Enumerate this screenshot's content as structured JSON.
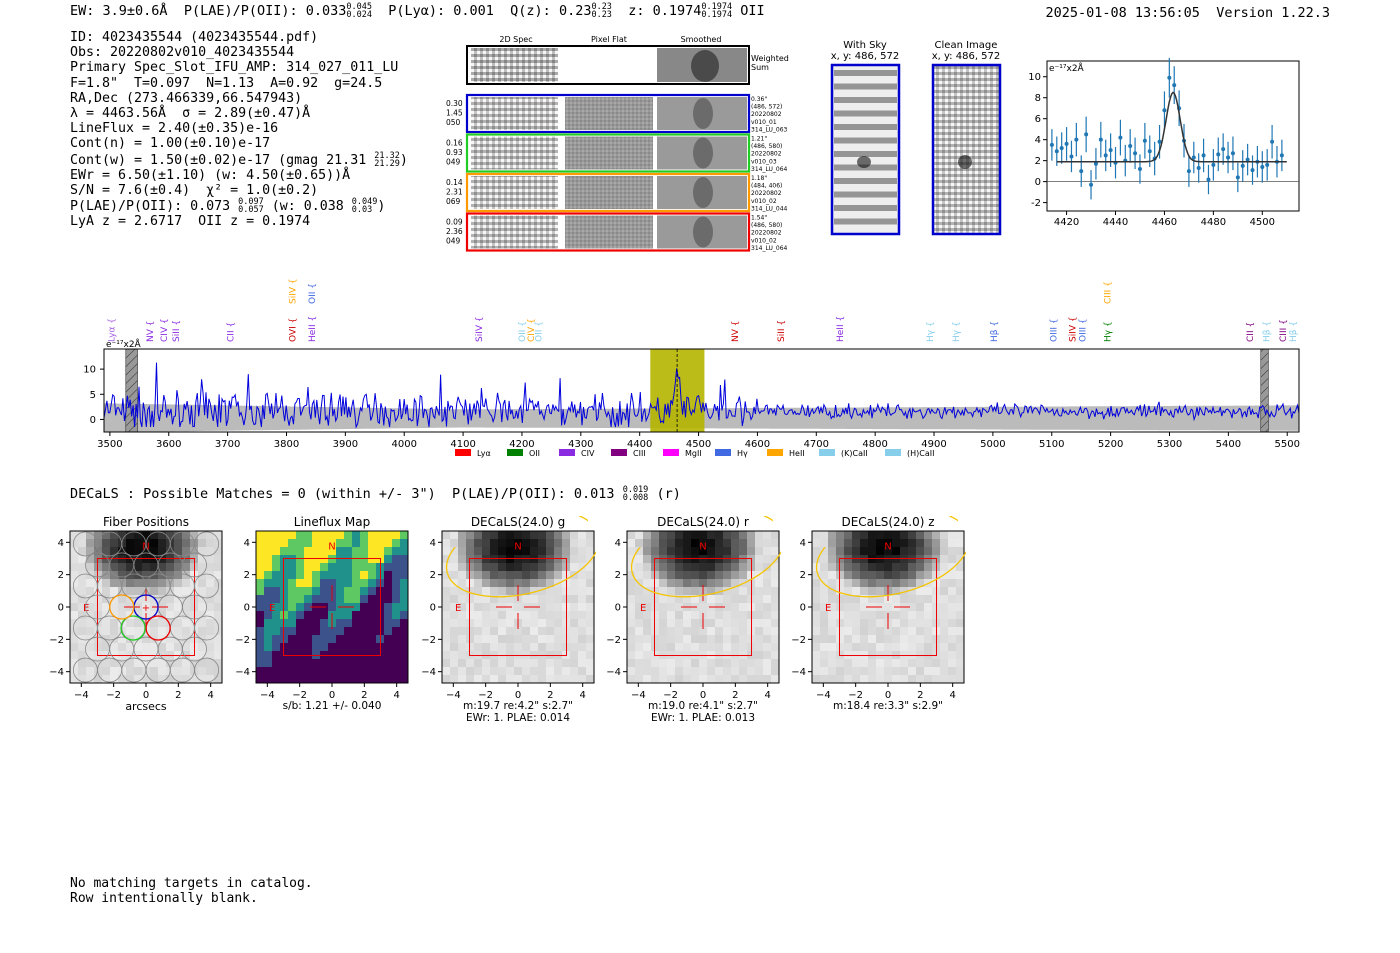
{
  "header": {
    "ew": "EW: 3.9±0.6Å",
    "plae_label": "P(LAE)/P(OII): 0.033",
    "plae_hi": "0.045",
    "plae_lo": "0.024",
    "plya": "P(Lyα): 0.001",
    "qz_label": "Q(z): 0.23",
    "qz_hi": "0.23",
    "qz_lo": "0.23",
    "z_label": "z: 0.1974",
    "z_hi": "0.1974",
    "z_lo": "0.1974",
    "z_line": "OII",
    "datetime": "2025-01-08 13:56:05",
    "version": "Version 1.22.3"
  },
  "info": {
    "id": "ID: 4023435544 (4023435544.pdf)",
    "obs": "Obs: 20220802v010_4023435544",
    "primary": "Primary Spec_Slot_IFU_AMP: 314_027_011_LU",
    "params": "F=1.8\"  T=0.097  N=1.13  A=0.92  g=24.5",
    "radec": "RA,Dec (273.466339,66.547943)",
    "lambda": "λ = 4463.56Å  σ = 2.89(±0.47)Å",
    "lineflux": "LineFlux = 2.40(±0.35)e-16",
    "contn": "Cont(n) = 1.00(±0.10)e-17",
    "contw": "Cont(w) = 1.50(±0.02)e-17 (gmag 21.31",
    "contw_hi": "21.32",
    "contw_lo": "21.29",
    "contw_end": ")",
    "ewr": "EWr = 6.50(±1.10) (w: 4.50(±0.65))Å",
    "sn": "S/N = 7.6(±0.4)  χ² = 1.0(±0.2)",
    "plae": "P(LAE)/P(OII): 0.073",
    "plae_hi": "0.097",
    "plae_lo": "0.057",
    "plae_w": " (w: 0.038",
    "plae_w_hi": "0.049",
    "plae_w_lo": "0.03",
    "plae_w_end": ")",
    "lyaz": "LyA z = 2.6717  OII z = 0.1974"
  },
  "cutouts": {
    "col_2d": "2D Spec",
    "col_flat": "Pixel Flat",
    "col_smooth": "Smoothed",
    "weighted_1": "Weighted",
    "weighted_2": "Sum",
    "rows": [
      {
        "w": [
          "0.30",
          "1.45",
          "050"
        ],
        "info": [
          "0.36\"",
          "(486, 572)",
          "20220802",
          "v010_01",
          "314_LU_063"
        ],
        "color": "#0000cc"
      },
      {
        "w": [
          "0.16",
          "0.93",
          "049"
        ],
        "info": [
          "1.21\"",
          "(486, 580)",
          "20220802",
          "v010_03",
          "314_LU_064"
        ],
        "color": "#22cc22"
      },
      {
        "w": [
          "0.14",
          "2.31",
          "069"
        ],
        "info": [
          "1.18\"",
          "(484, 406)",
          "20220802",
          "v010_02",
          "314_LU_044"
        ],
        "color": "#ff9900"
      },
      {
        "w": [
          "0.09",
          "2.36",
          "049"
        ],
        "info": [
          "1.54\"",
          "(486, 580)",
          "20220802",
          "v010_02",
          "314_LU_064"
        ],
        "color": "#ee0000"
      }
    ]
  },
  "sky": {
    "with_sky_title": "With Sky",
    "with_sky_xy": "x, y: 486, 572",
    "clean_title": "Clean Image",
    "clean_xy": "x, y: 486, 572"
  },
  "legend": [
    {
      "label": "Lyα",
      "color": "#ff0000"
    },
    {
      "label": "OII",
      "color": "#008000"
    },
    {
      "label": "CIV",
      "color": "#8a2be2"
    },
    {
      "label": "CIII",
      "color": "#800080"
    },
    {
      "label": "MgII",
      "color": "#ff00ff"
    },
    {
      "label": "Hγ",
      "color": "#4169e1"
    },
    {
      "label": "HeII",
      "color": "#ffa500"
    },
    {
      "label": "(K)CaII",
      "color": "#87ceeb"
    },
    {
      "label": "(H)CaII",
      "color": "#87ceeb"
    }
  ],
  "line_labels": [
    {
      "t": "Lyα",
      "w": 3503,
      "c": "#a55ee0",
      "row": 2
    },
    {
      "t": "NV",
      "w": 3568,
      "c": "#8a2be2",
      "row": 2
    },
    {
      "t": "CIV",
      "w": 3592,
      "c": "#8a2be2",
      "row": 2
    },
    {
      "t": "SiII",
      "w": 3612,
      "c": "#8a2be2",
      "row": 2
    },
    {
      "t": "CII",
      "w": 3705,
      "c": "#8a2be2",
      "row": 2
    },
    {
      "t": "SiIV",
      "w": 3810,
      "c": "#ffa500",
      "row": 1
    },
    {
      "t": "OVI",
      "w": 3810,
      "c": "#cc0000",
      "row": 2
    },
    {
      "t": "OII",
      "w": 3843,
      "c": "#4169e1",
      "row": 1
    },
    {
      "t": "HeII",
      "w": 3843,
      "c": "#8a2be2",
      "row": 2
    },
    {
      "t": "SiIV",
      "w": 4127,
      "c": "#8a2be2",
      "row": 2
    },
    {
      "t": "OII",
      "w": 4200,
      "c": "#87ceeb",
      "row": 2
    },
    {
      "t": "CIV",
      "w": 4215,
      "c": "#ffa500",
      "row": 2
    },
    {
      "t": "OII",
      "w": 4228,
      "c": "#87ceeb",
      "row": 2
    },
    {
      "t": "NV",
      "w": 4562,
      "c": "#cc0000",
      "row": 2
    },
    {
      "t": "SiII",
      "w": 4640,
      "c": "#cc0000",
      "row": 2
    },
    {
      "t": "HeII",
      "w": 4740,
      "c": "#8a2be2",
      "row": 2
    },
    {
      "t": "Hγ",
      "w": 4893,
      "c": "#87ceeb",
      "row": 2
    },
    {
      "t": "Hγ",
      "w": 4937,
      "c": "#87ceeb",
      "row": 2
    },
    {
      "t": "Hβ",
      "w": 5002,
      "c": "#4169e1",
      "row": 2
    },
    {
      "t": "OIII",
      "w": 5103,
      "c": "#4169e1",
      "row": 2
    },
    {
      "t": "SiIV",
      "w": 5135,
      "c": "#cc0000",
      "row": 2
    },
    {
      "t": "OIII",
      "w": 5152,
      "c": "#4169e1",
      "row": 2
    },
    {
      "t": "CIII",
      "w": 5195,
      "c": "#ffa500",
      "row": 1
    },
    {
      "t": "Hγ",
      "w": 5195,
      "c": "#008000",
      "row": 2
    },
    {
      "t": "CII",
      "w": 5437,
      "c": "#800080",
      "row": 2
    },
    {
      "t": "Hβ",
      "w": 5465,
      "c": "#87ceeb",
      "row": 2
    },
    {
      "t": "CIII",
      "w": 5493,
      "c": "#800080",
      "row": 2
    },
    {
      "t": "Hβ",
      "w": 5510,
      "c": "#87ceeb",
      "row": 2
    }
  ],
  "chart_data": [
    {
      "id": "line_fit",
      "type": "scatter",
      "title": "",
      "unit_label": "e⁻¹⁷x2Å",
      "xlim": [
        4412,
        4515
      ],
      "ylim": [
        -2.8,
        11.5
      ],
      "xticks": [
        4420,
        4440,
        4460,
        4480,
        4500
      ],
      "yticks": [
        -2,
        0,
        2,
        4,
        6,
        8,
        10
      ],
      "fit": {
        "center": 4463.56,
        "sigma": 2.89,
        "amplitude": 6.6,
        "continuum": 1.9
      },
      "points": [
        [
          4414,
          3.5,
          1.5
        ],
        [
          4416,
          2.9,
          1.4
        ],
        [
          4418,
          3.2,
          1.5
        ],
        [
          4420,
          3.6,
          1.6
        ],
        [
          4422,
          2.4,
          1.5
        ],
        [
          4424,
          4.0,
          1.6
        ],
        [
          4426,
          1.0,
          1.5
        ],
        [
          4428,
          4.5,
          1.7
        ],
        [
          4430,
          -0.3,
          1.4
        ],
        [
          4432,
          1.7,
          1.5
        ],
        [
          4434,
          4.0,
          1.7
        ],
        [
          4436,
          2.5,
          1.5
        ],
        [
          4438,
          3.0,
          1.6
        ],
        [
          4440,
          1.8,
          1.5
        ],
        [
          4442,
          4.2,
          1.7
        ],
        [
          4444,
          2.0,
          1.5
        ],
        [
          4446,
          3.4,
          1.6
        ],
        [
          4448,
          2.7,
          1.5
        ],
        [
          4450,
          1.2,
          1.4
        ],
        [
          4452,
          3.9,
          1.7
        ],
        [
          4454,
          2.9,
          1.5
        ],
        [
          4456,
          2.2,
          1.6
        ],
        [
          4458,
          3.8,
          1.6
        ],
        [
          4460,
          6.8,
          1.8
        ],
        [
          4462,
          9.9,
          1.9
        ],
        [
          4464,
          9.2,
          1.8
        ],
        [
          4466,
          7.0,
          1.7
        ],
        [
          4468,
          3.9,
          1.6
        ],
        [
          4470,
          1.0,
          1.5
        ],
        [
          4472,
          2.3,
          1.5
        ],
        [
          4474,
          1.3,
          1.4
        ],
        [
          4476,
          2.5,
          1.6
        ],
        [
          4478,
          0.2,
          1.4
        ],
        [
          4480,
          1.6,
          1.5
        ],
        [
          4482,
          2.6,
          1.6
        ],
        [
          4484,
          3.1,
          1.5
        ],
        [
          4486,
          2.3,
          1.5
        ],
        [
          4488,
          2.7,
          1.6
        ],
        [
          4490,
          0.4,
          1.4
        ],
        [
          4492,
          1.5,
          1.5
        ],
        [
          4494,
          2.1,
          1.5
        ],
        [
          4496,
          1.1,
          1.4
        ],
        [
          4498,
          1.9,
          1.5
        ],
        [
          4500,
          1.4,
          1.5
        ],
        [
          4502,
          1.6,
          1.5
        ],
        [
          4504,
          3.8,
          1.6
        ],
        [
          4506,
          1.9,
          1.5
        ],
        [
          4508,
          2.5,
          1.5
        ]
      ]
    },
    {
      "id": "full_spectrum",
      "type": "line",
      "unit_label": "e⁻¹⁷x2Å",
      "xlim": [
        3490,
        5520
      ],
      "ylim": [
        -2.5,
        14
      ],
      "xticks": [
        3500,
        3600,
        3700,
        3800,
        3900,
        4000,
        4100,
        4200,
        4300,
        4400,
        4500,
        4600,
        4700,
        4800,
        4900,
        5000,
        5100,
        5200,
        5300,
        5400,
        5500
      ],
      "yticks": [
        0,
        5,
        10
      ],
      "highlight_range": [
        4418,
        4510
      ],
      "peak_wavelength": 4463.56,
      "masked_ranges": [
        [
          3527,
          3547
        ],
        [
          5455,
          5468
        ]
      ],
      "samples": 820
    },
    {
      "id": "fiber_positions",
      "type": "heatmap",
      "title": "Fiber Positions",
      "xlabel": "arcsecs",
      "xticks": [
        -4,
        -2,
        0,
        2,
        4
      ],
      "yticks": [
        4,
        2,
        0,
        -2,
        -4
      ],
      "north": "N",
      "east": "E",
      "caption1": "",
      "caption2": ""
    },
    {
      "id": "lineflux_map",
      "type": "heatmap",
      "title": "Lineflux Map",
      "xlabel": "",
      "xticks": [
        -4,
        -2,
        0,
        2,
        4
      ],
      "yticks": [
        4,
        2,
        0,
        -2,
        -4
      ],
      "north": "N",
      "east": "E",
      "caption1": "s/b: 1.21 +/- 0.040",
      "caption2": ""
    },
    {
      "id": "decals_g",
      "type": "heatmap",
      "title": "DECaLS(24.0) g",
      "xlabel": "",
      "xticks": [
        -4,
        -2,
        0,
        2,
        4
      ],
      "yticks": [
        4,
        2,
        0,
        -2,
        -4
      ],
      "north": "N",
      "east": "E",
      "caption1": "m:19.7  re:4.2\"  s:2.7\"",
      "caption2": "EWr: 1. PLAE: 0.014"
    },
    {
      "id": "decals_r",
      "type": "heatmap",
      "title": "DECaLS(24.0) r",
      "xlabel": "",
      "xticks": [
        -4,
        -2,
        0,
        2,
        4
      ],
      "yticks": [
        4,
        2,
        0,
        -2,
        -4
      ],
      "north": "N",
      "east": "E",
      "caption1": "m:19.0  re:4.1\"  s:2.7\"",
      "caption2": "EWr: 1. PLAE: 0.013"
    },
    {
      "id": "decals_z",
      "type": "heatmap",
      "title": "DECaLS(24.0) z",
      "xlabel": "",
      "xticks": [
        -4,
        -2,
        0,
        2,
        4
      ],
      "yticks": [
        4,
        2,
        0,
        -2,
        -4
      ],
      "north": "N",
      "east": "E",
      "caption1": "m:18.4  re:3.3\"  s:2.9\"",
      "caption2": ""
    }
  ],
  "decals": {
    "title": "DECaLS : Possible Matches = 0 (within +/- 3\")  P(LAE)/P(OII): 0.013",
    "hi": "0.019",
    "lo": "0.008",
    "band": "(r)"
  },
  "footer": {
    "line1": "No matching targets in catalog.",
    "line2": "Row intentionally blank."
  }
}
